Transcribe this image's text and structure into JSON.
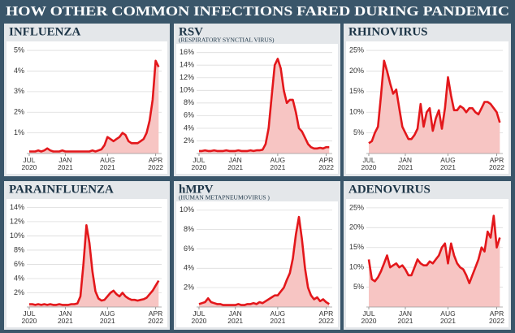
{
  "title": "HOW OTHER COMMON INFECTIONS FARED DURING PANDEMIC",
  "chart_data": [
    {
      "type": "line",
      "title": "INFLUENZA",
      "x": [
        0,
        0.5,
        1,
        1.5,
        2,
        2.5,
        3,
        3.5,
        4,
        4.5,
        5,
        5.5,
        6,
        6.5,
        7,
        7.5,
        8,
        8.5,
        9,
        9.5,
        10,
        10.5,
        11,
        11.5,
        12,
        12.5,
        13,
        13.5,
        14,
        14.5,
        15,
        15.5,
        16,
        16.5,
        17,
        17.5,
        18,
        18.5,
        19,
        19.5,
        20,
        20.5,
        21,
        21.5
      ],
      "series": [
        {
          "color": "#e3171b",
          "fill": "#f7c5c3",
          "values": [
            0.1,
            0.1,
            0.1,
            0.15,
            0.1,
            0.15,
            0.25,
            0.15,
            0.1,
            0.1,
            0.1,
            0.15,
            0.1,
            0.1,
            0.1,
            0.1,
            0.1,
            0.1,
            0.1,
            0.1,
            0.1,
            0.15,
            0.1,
            0.15,
            0.2,
            0.4,
            0.8,
            0.7,
            0.6,
            0.7,
            0.8,
            1.0,
            0.9,
            0.6,
            0.5,
            0.5,
            0.5,
            0.6,
            0.7,
            1.0,
            1.6,
            2.6,
            4.5,
            4.2
          ]
        }
      ],
      "xlim": [
        -0.4,
        22
      ],
      "xticks": [
        {
          "value": 0,
          "label": "JUL 2020"
        },
        {
          "value": 6,
          "label": "JAN 2021"
        },
        {
          "value": 13,
          "label": "AUG 2021"
        },
        {
          "value": 21,
          "label": "APR 2022"
        }
      ],
      "ylim": [
        0,
        5.2
      ],
      "yticks": [
        {
          "value": 1,
          "label": "1%"
        },
        {
          "value": 2,
          "label": "2%"
        },
        {
          "value": 3,
          "label": "3%"
        },
        {
          "value": 4,
          "label": "4%"
        },
        {
          "value": 5,
          "label": "5%"
        }
      ],
      "grid": true
    },
    {
      "type": "line",
      "title": "RSV",
      "subtitle": "(RESPIRATORY SYNCTIAL VIRUS)",
      "x": [
        0,
        0.5,
        1,
        1.5,
        2,
        2.5,
        3,
        3.5,
        4,
        4.5,
        5,
        5.5,
        6,
        6.5,
        7,
        7.5,
        8,
        8.5,
        9,
        9.5,
        10,
        10.5,
        11,
        11.5,
        12,
        12.5,
        13,
        13.5,
        14,
        14.5,
        15,
        15.5,
        16,
        16.5,
        17,
        17.5,
        18,
        18.5,
        19,
        19.5,
        20,
        20.5,
        21,
        21.5
      ],
      "series": [
        {
          "color": "#e3171b",
          "fill": "#f7c5c3",
          "values": [
            0.4,
            0.4,
            0.5,
            0.4,
            0.4,
            0.5,
            0.4,
            0.4,
            0.4,
            0.5,
            0.4,
            0.4,
            0.4,
            0.5,
            0.4,
            0.4,
            0.4,
            0.5,
            0.4,
            0.5,
            0.5,
            0.6,
            1.5,
            4,
            9,
            14,
            15,
            13.5,
            10,
            8,
            8.5,
            8.5,
            6.5,
            4,
            3.5,
            2.5,
            1.5,
            1,
            0.8,
            0.8,
            0.9,
            0.8,
            1,
            1
          ]
        }
      ],
      "xlim": [
        -0.4,
        22
      ],
      "xticks": [
        {
          "value": 0,
          "label": "JUL 2020"
        },
        {
          "value": 6,
          "label": "JAN 2021"
        },
        {
          "value": 13,
          "label": "AUG 2021"
        },
        {
          "value": 21,
          "label": "APR 2022"
        }
      ],
      "ylim": [
        0,
        16.6
      ],
      "yticks": [
        {
          "value": 2,
          "label": "2%"
        },
        {
          "value": 4,
          "label": "4%"
        },
        {
          "value": 6,
          "label": "6%"
        },
        {
          "value": 8,
          "label": "8%"
        },
        {
          "value": 10,
          "label": "10%"
        },
        {
          "value": 12,
          "label": "12%"
        },
        {
          "value": 14,
          "label": "14%"
        },
        {
          "value": 16,
          "label": "16%"
        }
      ],
      "grid": true
    },
    {
      "type": "line",
      "title": "RHINOVIRUS",
      "x": [
        0,
        0.5,
        1,
        1.5,
        2,
        2.5,
        3,
        3.5,
        4,
        4.5,
        5,
        5.5,
        6,
        6.5,
        7,
        7.5,
        8,
        8.5,
        9,
        9.5,
        10,
        10.5,
        11,
        11.5,
        12,
        12.5,
        13,
        13.5,
        14,
        14.5,
        15,
        15.5,
        16,
        16.5,
        17,
        17.5,
        18,
        18.5,
        19,
        19.5,
        20,
        20.5,
        21,
        21.5
      ],
      "series": [
        {
          "color": "#e3171b",
          "fill": "#f7c5c3",
          "values": [
            2.5,
            3,
            5,
            6.5,
            14,
            22.5,
            20,
            17,
            14.5,
            15.5,
            11,
            6.5,
            5,
            3.5,
            3.5,
            4.5,
            6,
            12,
            6.5,
            10,
            11,
            5.5,
            8.5,
            10.5,
            6,
            11,
            18.5,
            14,
            10.5,
            10.5,
            11.5,
            11,
            10,
            11,
            11,
            10,
            9.5,
            11,
            12.5,
            12.5,
            12,
            11,
            10,
            7.5
          ]
        }
      ],
      "xlim": [
        -0.4,
        22
      ],
      "xticks": [
        {
          "value": 0,
          "label": "JUL 2020"
        },
        {
          "value": 6,
          "label": "JAN 2021"
        },
        {
          "value": 13,
          "label": "AUG 2021"
        },
        {
          "value": 21,
          "label": "APR 2022"
        }
      ],
      "ylim": [
        0,
        26
      ],
      "yticks": [
        {
          "value": 5,
          "label": "5%"
        },
        {
          "value": 10,
          "label": "10%"
        },
        {
          "value": 15,
          "label": "15%"
        },
        {
          "value": 20,
          "label": "20%"
        },
        {
          "value": 25,
          "label": "25%"
        }
      ],
      "grid": true
    },
    {
      "type": "line",
      "title": "PARAINFLUENZA",
      "x": [
        0,
        0.5,
        1,
        1.5,
        2,
        2.5,
        3,
        3.5,
        4,
        4.5,
        5,
        5.5,
        6,
        6.5,
        7,
        7.5,
        8,
        8.5,
        9,
        9.5,
        10,
        10.5,
        11,
        11.5,
        12,
        12.5,
        13,
        13.5,
        14,
        14.5,
        15,
        15.5,
        16,
        16.5,
        17,
        17.5,
        18,
        18.5,
        19,
        19.5,
        20,
        20.5,
        21,
        21.5
      ],
      "series": [
        {
          "color": "#e3171b",
          "fill": "#f7c5c3",
          "values": [
            0.4,
            0.4,
            0.3,
            0.4,
            0.3,
            0.4,
            0.3,
            0.4,
            0.3,
            0.3,
            0.4,
            0.3,
            0.3,
            0.3,
            0.4,
            0.4,
            0.5,
            1.5,
            6,
            11.5,
            9,
            5,
            2.2,
            1.2,
            0.9,
            1,
            1.5,
            2,
            2.3,
            1.8,
            1.5,
            2,
            1.5,
            1.2,
            1,
            1,
            0.9,
            1,
            1.1,
            1.3,
            1.8,
            2.3,
            3,
            3.7
          ]
        }
      ],
      "xlim": [
        -0.4,
        22
      ],
      "xticks": [
        {
          "value": 0,
          "label": "JUL 2020"
        },
        {
          "value": 6,
          "label": "JAN 2021"
        },
        {
          "value": 13,
          "label": "AUG 2021"
        },
        {
          "value": 21,
          "label": "APR 2022"
        }
      ],
      "ylim": [
        0,
        14.5
      ],
      "yticks": [
        {
          "value": 2,
          "label": "2%"
        },
        {
          "value": 4,
          "label": "4%"
        },
        {
          "value": 6,
          "label": "6%"
        },
        {
          "value": 8,
          "label": "8%"
        },
        {
          "value": 10,
          "label": "10%"
        },
        {
          "value": 12,
          "label": "12%"
        },
        {
          "value": 14,
          "label": "14%"
        }
      ],
      "grid": true
    },
    {
      "type": "line",
      "title": "hMPV",
      "subtitle": "(HUMAN METAPNEUMOVIRUS )",
      "x": [
        0,
        0.5,
        1,
        1.5,
        2,
        2.5,
        3,
        3.5,
        4,
        4.5,
        5,
        5.5,
        6,
        6.5,
        7,
        7.5,
        8,
        8.5,
        9,
        9.5,
        10,
        10.5,
        11,
        11.5,
        12,
        12.5,
        13,
        13.5,
        14,
        14.5,
        15,
        15.5,
        16,
        16.5,
        17,
        17.5,
        18,
        18.5,
        19,
        19.5,
        20,
        20.5,
        21,
        21.5
      ],
      "series": [
        {
          "color": "#e3171b",
          "fill": "#f7c5c3",
          "values": [
            0.3,
            0.4,
            0.5,
            0.9,
            0.5,
            0.4,
            0.3,
            0.3,
            0.2,
            0.2,
            0.2,
            0.2,
            0.2,
            0.3,
            0.2,
            0.2,
            0.3,
            0.3,
            0.4,
            0.3,
            0.5,
            0.4,
            0.6,
            0.8,
            1,
            1.2,
            1.2,
            1.6,
            2,
            2.8,
            3.5,
            5,
            7.5,
            9.3,
            7,
            4,
            2,
            1.2,
            0.8,
            1,
            0.6,
            0.8,
            0.5,
            0.3
          ]
        }
      ],
      "xlim": [
        -0.4,
        22
      ],
      "xticks": [
        {
          "value": 0,
          "label": "JUL 2020"
        },
        {
          "value": 6,
          "label": "JAN 2021"
        },
        {
          "value": 13,
          "label": "AUG 2021"
        },
        {
          "value": 21,
          "label": "APR 2022"
        }
      ],
      "ylim": [
        0,
        10.4
      ],
      "yticks": [
        {
          "value": 2,
          "label": "2%"
        },
        {
          "value": 4,
          "label": "4%"
        },
        {
          "value": 6,
          "label": "6%"
        },
        {
          "value": 8,
          "label": "8%"
        },
        {
          "value": 10,
          "label": "10%"
        }
      ],
      "grid": true
    },
    {
      "type": "line",
      "title": "ADENOVIRUS",
      "x": [
        0,
        0.5,
        1,
        1.5,
        2,
        2.5,
        3,
        3.5,
        4,
        4.5,
        5,
        5.5,
        6,
        6.5,
        7,
        7.5,
        8,
        8.5,
        9,
        9.5,
        10,
        10.5,
        11,
        11.5,
        12,
        12.5,
        13,
        13.5,
        14,
        14.5,
        15,
        15.5,
        16,
        16.5,
        17,
        17.5,
        18,
        18.5,
        19,
        19.5,
        20,
        20.5,
        21,
        21.5
      ],
      "series": [
        {
          "color": "#e3171b",
          "fill": "#f7c5c3",
          "values": [
            12,
            7,
            6.5,
            7.5,
            9,
            11,
            13,
            10,
            10.5,
            11,
            10,
            10.5,
            9.5,
            8,
            8,
            10,
            12,
            11,
            10.5,
            10.5,
            11.5,
            11,
            12,
            13,
            15,
            16,
            11,
            16,
            13,
            11,
            10,
            9.5,
            8,
            6,
            8,
            10,
            12,
            15,
            14,
            19,
            17.5,
            23,
            15,
            17.5
          ]
        }
      ],
      "xlim": [
        -0.4,
        22
      ],
      "xticks": [
        {
          "value": 0,
          "label": "JUL 2020"
        },
        {
          "value": 6,
          "label": "JAN 2021"
        },
        {
          "value": 13,
          "label": "AUG 2021"
        },
        {
          "value": 21,
          "label": "APR 2022"
        }
      ],
      "ylim": [
        0,
        26
      ],
      "yticks": [
        {
          "value": 5,
          "label": "5%"
        },
        {
          "value": 10,
          "label": "10%"
        },
        {
          "value": 15,
          "label": "15%"
        },
        {
          "value": 20,
          "label": "20%"
        },
        {
          "value": 25,
          "label": "25%"
        }
      ],
      "grid": true
    }
  ]
}
